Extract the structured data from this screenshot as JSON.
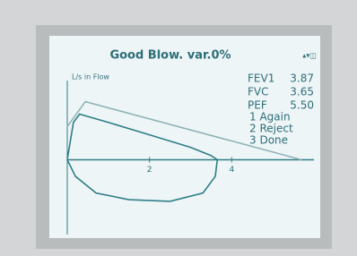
{
  "screen": {
    "title": "Good Blow. var.0%",
    "readings": [
      {
        "label": "FEV1",
        "value": "3.87"
      },
      {
        "label": "FVC",
        "value": "3.65"
      },
      {
        "label": "PEF",
        "value": "5.50"
      }
    ],
    "menu": [
      "1 Again",
      "2 Reject",
      "3 Done"
    ]
  },
  "chart_data": {
    "type": "line",
    "y_label": "L/s in Flow",
    "xlim": [
      0,
      6
    ],
    "ylim": [
      -9,
      9
    ],
    "xticks": [
      2,
      4
    ],
    "series": [
      {
        "color": "#8fb4b8",
        "x": [
          0,
          0.44,
          5.7
        ],
        "values": [
          4,
          7,
          0
        ]
      },
      {
        "color": "#2f7f86",
        "x": [
          0,
          0.15,
          0.3,
          1,
          2,
          3,
          3.5,
          3.65,
          3.6,
          3.3,
          2.5,
          1.5,
          0.7,
          0.2,
          0
        ],
        "values": [
          0,
          4.5,
          5.5,
          4.5,
          3,
          1.5,
          0.5,
          0,
          -2,
          -4,
          -5,
          -4.8,
          -4,
          -2,
          0
        ]
      }
    ]
  }
}
